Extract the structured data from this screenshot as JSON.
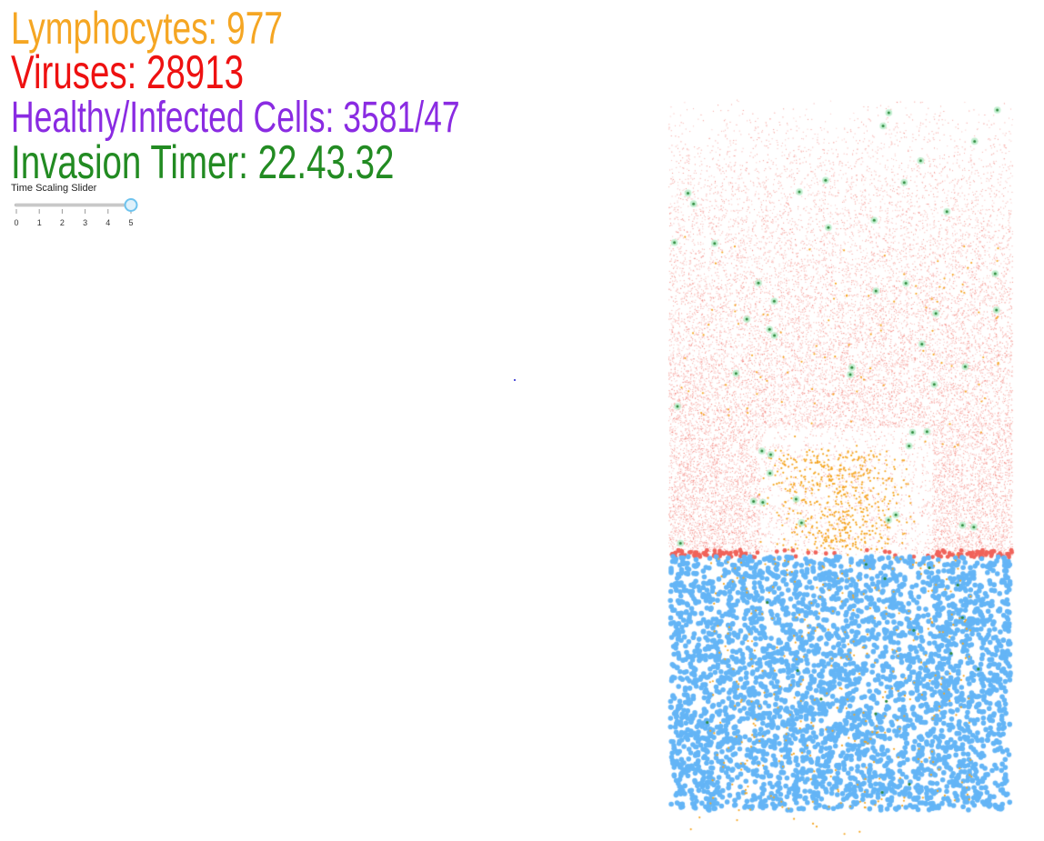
{
  "hud": {
    "lymphocytes": {
      "label": "Lymphocytes: ",
      "value": "977",
      "color": "#f5a623"
    },
    "viruses": {
      "label": "Viruses: ",
      "value": "28913",
      "color": "#ee1111"
    },
    "cells": {
      "label": "Healthy/Infected Cells: ",
      "value": "3581/47",
      "color": "#8a2be2"
    },
    "timer": {
      "label": "Invasion Timer: ",
      "value": "22.43.32",
      "color": "#228b22"
    }
  },
  "slider": {
    "title": "Time Scaling Slider",
    "ticks": [
      "0",
      "1",
      "2",
      "3",
      "4",
      "5"
    ],
    "min": 0,
    "max": 5,
    "value": 5,
    "track_color": "#cccccc",
    "thumb_color": "#6ec3ee"
  },
  "colors": {
    "virus": "#f0635a",
    "healthy_cell": "#64b5f6",
    "lymphocyte": "#f5a623",
    "infected_cell": "#2e8b3e",
    "infected_glow": "#b8ecc9"
  },
  "simulation": {
    "counts": {
      "viruses": 28913,
      "lymphocytes": 977,
      "healthy_cells": 3581,
      "infected_cells": 47
    }
  }
}
